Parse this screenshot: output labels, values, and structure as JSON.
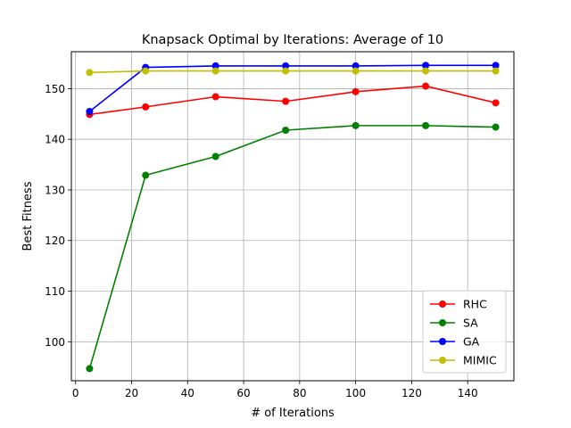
{
  "chart_data": {
    "type": "line",
    "title": "Knapsack Optimal by Iterations: Average of 10",
    "xlabel": "# of Iterations",
    "ylabel": "Best Fitness",
    "xlim": [
      -1.5,
      156.5
    ],
    "ylim": [
      92.3,
      157.3
    ],
    "xticks": [
      0,
      20,
      40,
      60,
      80,
      100,
      120,
      140
    ],
    "yticks": [
      100,
      110,
      120,
      130,
      140,
      150
    ],
    "grid": true,
    "legend_position": "lower-right",
    "x": [
      5,
      25,
      50,
      75,
      100,
      125,
      150
    ],
    "series": [
      {
        "name": "RHC",
        "color": "#ff0000",
        "values": [
          144.9,
          146.4,
          148.4,
          147.5,
          149.4,
          150.5,
          147.2
        ]
      },
      {
        "name": "SA",
        "color": "#008000",
        "values": [
          94.7,
          132.9,
          136.6,
          141.8,
          142.7,
          142.7,
          142.4
        ]
      },
      {
        "name": "GA",
        "color": "#0000ff",
        "values": [
          145.5,
          154.2,
          154.5,
          154.5,
          154.5,
          154.6,
          154.6
        ]
      },
      {
        "name": "MIMIC",
        "color": "#bfbf00",
        "values": [
          153.2,
          153.5,
          153.5,
          153.5,
          153.5,
          153.5,
          153.5
        ]
      }
    ]
  }
}
